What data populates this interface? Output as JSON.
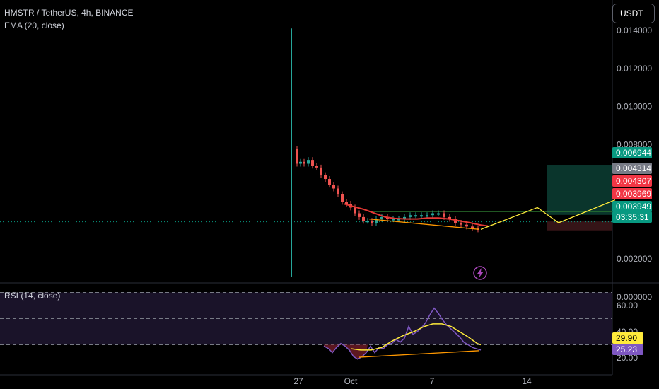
{
  "header": {
    "symbol_line": "HMSTR / TetherUS, 4h, BINANCE",
    "indicator_line": "EMA (20, close)",
    "currency_button": "USDT"
  },
  "chart_data": [
    {
      "type": "line",
      "title": "HMSTR / TetherUS, 4h, BINANCE",
      "description_of_content": "",
      "y_ticks": [
        "0.014000",
        "0.012000",
        "0.010000",
        "0.008000",
        "0.002000",
        "0.000000"
      ],
      "x_ticks": [
        "27",
        "Oct",
        "7",
        "14"
      ],
      "ylim": [
        0,
        0.0147
      ],
      "series": [
        {
          "name": "EMA (20, close)",
          "color": "#e53935",
          "points": [
            [
              486,
              0.0049
            ],
            [
              500,
              0.00475
            ],
            [
              515,
              0.0046
            ],
            [
              530,
              0.0044
            ],
            [
              545,
              0.0042
            ],
            [
              560,
              0.00412
            ],
            [
              575,
              0.0041
            ],
            [
              590,
              0.0041
            ],
            [
              605,
              0.00415
            ],
            [
              620,
              0.00415
            ],
            [
              635,
              0.0041
            ],
            [
              650,
              0.004
            ],
            [
              665,
              0.0039
            ],
            [
              680,
              0.00378
            ],
            [
              690,
              0.00373
            ]
          ]
        },
        {
          "name": "price",
          "color": "#ef5350",
          "points": [
            [
              416,
              0.0078
            ],
            [
              420,
              0.007
            ],
            [
              425,
              0.0071
            ],
            [
              430,
              0.007
            ],
            [
              436,
              0.0072
            ],
            [
              442,
              0.0069
            ],
            [
              448,
              0.0068
            ],
            [
              454,
              0.0064
            ],
            [
              460,
              0.0062
            ],
            [
              466,
              0.0059
            ],
            [
              472,
              0.0057
            ],
            [
              478,
              0.0054
            ],
            [
              484,
              0.005
            ],
            [
              490,
              0.0049
            ],
            [
              496,
              0.0047
            ],
            [
              502,
              0.0044
            ],
            [
              508,
              0.0042
            ],
            [
              514,
              0.004
            ],
            [
              520,
              0.004
            ],
            [
              526,
              0.0039
            ],
            [
              532,
              0.0041
            ],
            [
              540,
              0.0042
            ],
            [
              548,
              0.0041
            ],
            [
              556,
              0.0041
            ],
            [
              564,
              0.0041
            ],
            [
              572,
              0.0042
            ],
            [
              580,
              0.0043
            ],
            [
              588,
              0.0043
            ],
            [
              596,
              0.0043
            ],
            [
              604,
              0.0043
            ],
            [
              612,
              0.0044
            ],
            [
              620,
              0.0044
            ],
            [
              628,
              0.0042
            ],
            [
              636,
              0.0041
            ],
            [
              644,
              0.0039
            ],
            [
              652,
              0.0038
            ],
            [
              660,
              0.0037
            ],
            [
              668,
              0.0036
            ],
            [
              676,
              0.00355
            ]
          ]
        }
      ],
      "spike": {
        "low": 0.00105,
        "high": 0.0141,
        "color": "#26a69a"
      },
      "projection": {
        "color": "#ffeb3b",
        "points": [
          [
            680,
            0.00355
          ],
          [
            760,
            0.0047
          ],
          [
            790,
            0.0039
          ],
          [
            870,
            0.0051
          ]
        ]
      },
      "support_line": {
        "color": "#ff9800",
        "from": [
          522,
          0.0041
        ],
        "to": [
          678,
          0.00355
        ]
      },
      "price_labels": [
        {
          "text": "0.006944",
          "bg": "#089981",
          "value": 0.006944
        },
        {
          "text": "0.004314",
          "bg": "#787b86",
          "value": 0.004314
        },
        {
          "text": "0.004307",
          "bg": "#f23645",
          "value": 0.004307
        },
        {
          "text": "0.003969",
          "bg": "#f23645",
          "value": 0.003969
        },
        {
          "text": "0.003949",
          "bg": "#089981",
          "value": 0.003949
        },
        {
          "text": "03:35:31",
          "bg": "#089981",
          "value": 0.003949
        }
      ]
    },
    {
      "type": "line",
      "title": "RSI (14, close)",
      "y_ticks": [
        "60.00",
        "40.00",
        "20.00"
      ],
      "ylim": [
        17,
        72
      ],
      "band": [
        30,
        70
      ],
      "midline": 50,
      "series": [
        {
          "name": "RSI",
          "color": "#7e57c2",
          "points": [
            [
              458,
              29
            ],
            [
              465,
              27
            ],
            [
              470,
              24
            ],
            [
              476,
              28
            ],
            [
              482,
              31
            ],
            [
              488,
              29
            ],
            [
              494,
              26
            ],
            [
              500,
              21
            ],
            [
              506,
              19
            ],
            [
              512,
              21
            ],
            [
              518,
              24
            ],
            [
              524,
              29
            ],
            [
              530,
              24
            ],
            [
              536,
              28
            ],
            [
              542,
              27
            ],
            [
              548,
              30
            ],
            [
              554,
              31
            ],
            [
              560,
              34
            ],
            [
              566,
              32
            ],
            [
              572,
              35
            ],
            [
              578,
              44
            ],
            [
              584,
              38
            ],
            [
              590,
              40
            ],
            [
              596,
              43
            ],
            [
              602,
              47
            ],
            [
              608,
              53
            ],
            [
              614,
              58
            ],
            [
              620,
              54
            ],
            [
              626,
              49
            ],
            [
              632,
              45
            ],
            [
              638,
              42
            ],
            [
              644,
              39
            ],
            [
              650,
              36
            ],
            [
              656,
              32
            ],
            [
              662,
              30
            ],
            [
              668,
              28
            ],
            [
              674,
              27
            ],
            [
              680,
              26
            ]
          ]
        },
        {
          "name": "RSI MA",
          "color": "#ffeb3b",
          "points": [
            [
              496,
              27
            ],
            [
              510,
              26
            ],
            [
              525,
              26
            ],
            [
              540,
              28
            ],
            [
              555,
              33
            ],
            [
              570,
              37
            ],
            [
              585,
              40
            ],
            [
              600,
              44
            ],
            [
              612,
              46
            ],
            [
              625,
              46
            ],
            [
              638,
              44
            ],
            [
              650,
              40
            ],
            [
              662,
              36
            ],
            [
              675,
              31
            ],
            [
              680,
              30
            ]
          ]
        }
      ],
      "divergence_line": {
        "color": "#ff9800",
        "from": [
          508,
          20.5
        ],
        "to": [
          678,
          25.5
        ]
      },
      "value_labels": [
        {
          "text": "29.90",
          "bg": "#ffeb3b",
          "color": "#000",
          "value": 29.9
        },
        {
          "text": "25.23",
          "bg": "#7e57c2",
          "color": "#fff",
          "value": 25.23
        }
      ]
    }
  ],
  "icons": {
    "flash": "flash-icon"
  }
}
